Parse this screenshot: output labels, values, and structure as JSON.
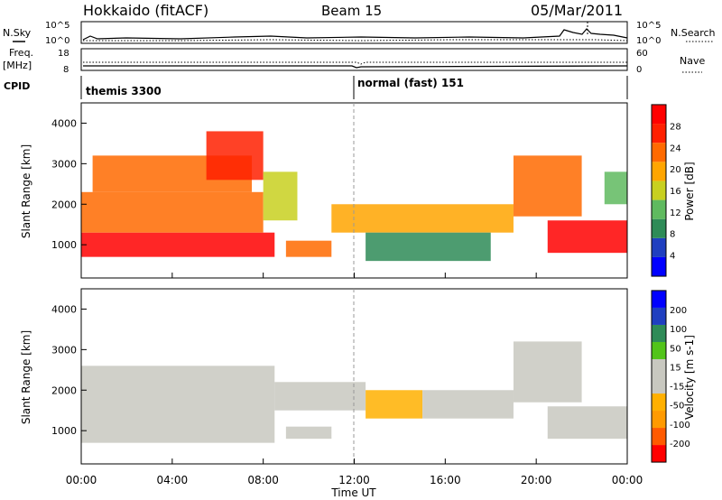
{
  "header": {
    "station": "Hokkaido (fitACF)",
    "beam": "Beam 15",
    "date": "05/Mar/2011"
  },
  "top_panels": {
    "nsky_label": "N.Sky",
    "nsearch_label": "N.Search",
    "freq_label": "Freq.",
    "freq_unit": "[MHz]",
    "nave_label": "Nave",
    "cpid_label": "CPID",
    "nsky_ticks": [
      "10^5",
      "10^0"
    ],
    "nsearch_ticks": [
      "10^5",
      "10^0"
    ],
    "freq_ticks": [
      "18",
      "8"
    ],
    "nave_ticks": [
      "60",
      "0"
    ],
    "cpid_modes": [
      {
        "name": "themis 3300",
        "start_hour": 0
      },
      {
        "name": "normal (fast) 151",
        "start_hour": 12
      }
    ]
  },
  "colors": {
    "power_scale": [
      "#0000ff",
      "#1f3fc0",
      "#2e8b57",
      "#5fba5f",
      "#c8d020",
      "#ffa500",
      "#ff6a00",
      "#ff2000",
      "#ff0000"
    ],
    "velocity_scale": [
      "#ff0000",
      "#ff5a00",
      "#ff9a00",
      "#ffb000",
      "#c8c8c0",
      "#c8c8c0",
      "#52c41a",
      "#2e8b57",
      "#1f3fc0",
      "#0000ff"
    ],
    "ground_scatter": "#a9a9a9"
  },
  "chart_data": [
    {
      "type": "heatmap",
      "title": "",
      "xlabel": "Time UT",
      "ylabel": "Slant Range [km]",
      "xlim": [
        0,
        24
      ],
      "ylim": [
        180,
        4500
      ],
      "x_ticks": [
        "00:00",
        "04:00",
        "08:00",
        "12:00",
        "16:00",
        "20:00",
        "00:00"
      ],
      "y_ticks": [
        "1000",
        "2000",
        "3000",
        "4000"
      ],
      "colorbar": {
        "label": "Power [dB]",
        "ticks": [
          "4",
          "8",
          "12",
          "16",
          "20",
          "24",
          "28"
        ],
        "range": [
          0,
          30
        ]
      },
      "regions": [
        {
          "t0": 0.0,
          "t1": 8.5,
          "r0": 700,
          "r1": 1300,
          "value": 27
        },
        {
          "t0": 0.0,
          "t1": 8.0,
          "r0": 1300,
          "r1": 2300,
          "value": 21
        },
        {
          "t0": 0.5,
          "t1": 7.5,
          "r0": 2300,
          "r1": 3200,
          "value": 23
        },
        {
          "t0": 5.5,
          "t1": 8.0,
          "r0": 2600,
          "r1": 3800,
          "value": 26
        },
        {
          "t0": 8.0,
          "t1": 9.5,
          "r0": 1600,
          "r1": 2800,
          "value": 15
        },
        {
          "t0": 9.0,
          "t1": 11.0,
          "r0": 700,
          "r1": 1100,
          "value": 22
        },
        {
          "t0": 11.0,
          "t1": 19.0,
          "r0": 1300,
          "r1": 2000,
          "value": 17
        },
        {
          "t0": 12.5,
          "t1": 18.0,
          "r0": 600,
          "r1": 1300,
          "value": 8
        },
        {
          "t0": 20.5,
          "t1": 24.0,
          "r0": 800,
          "r1": 1600,
          "value": 27
        },
        {
          "t0": 19.0,
          "t1": 22.0,
          "r0": 1700,
          "r1": 3200,
          "value": 22
        },
        {
          "t0": 23.0,
          "t1": 24.0,
          "r0": 2000,
          "r1": 2800,
          "value": 12
        }
      ]
    },
    {
      "type": "heatmap",
      "title": "",
      "xlabel": "Time UT",
      "ylabel": "Slant Range [km]",
      "xlim": [
        0,
        24
      ],
      "ylim": [
        180,
        4500
      ],
      "x_ticks": [
        "00:00",
        "04:00",
        "08:00",
        "12:00",
        "16:00",
        "20:00",
        "00:00"
      ],
      "y_ticks": [
        "1000",
        "2000",
        "3000",
        "4000"
      ],
      "colorbar": {
        "label": "Velocity [m s-1]",
        "ticks": [
          "-200",
          "-100",
          "-50",
          "-15",
          "15",
          "50",
          "100",
          "200"
        ],
        "range": [
          -250,
          250
        ]
      },
      "regions": [
        {
          "t0": 0.0,
          "t1": 8.5,
          "r0": 700,
          "r1": 2600,
          "value": 0
        },
        {
          "t0": 8.5,
          "t1": 12.5,
          "r0": 1500,
          "r1": 2200,
          "value": -40
        },
        {
          "t0": 9.0,
          "t1": 11.0,
          "r0": 800,
          "r1": 1100,
          "value": -40
        },
        {
          "t0": 12.5,
          "t1": 15.0,
          "r0": 1300,
          "r1": 2000,
          "value": -60
        },
        {
          "t0": 15.0,
          "t1": 19.0,
          "r0": 1300,
          "r1": 2000,
          "value": 40
        },
        {
          "t0": 19.0,
          "t1": 22.0,
          "r0": 1700,
          "r1": 3200,
          "value": 45
        },
        {
          "t0": 20.5,
          "t1": 24.0,
          "r0": 800,
          "r1": 1600,
          "value": 0
        }
      ]
    }
  ]
}
